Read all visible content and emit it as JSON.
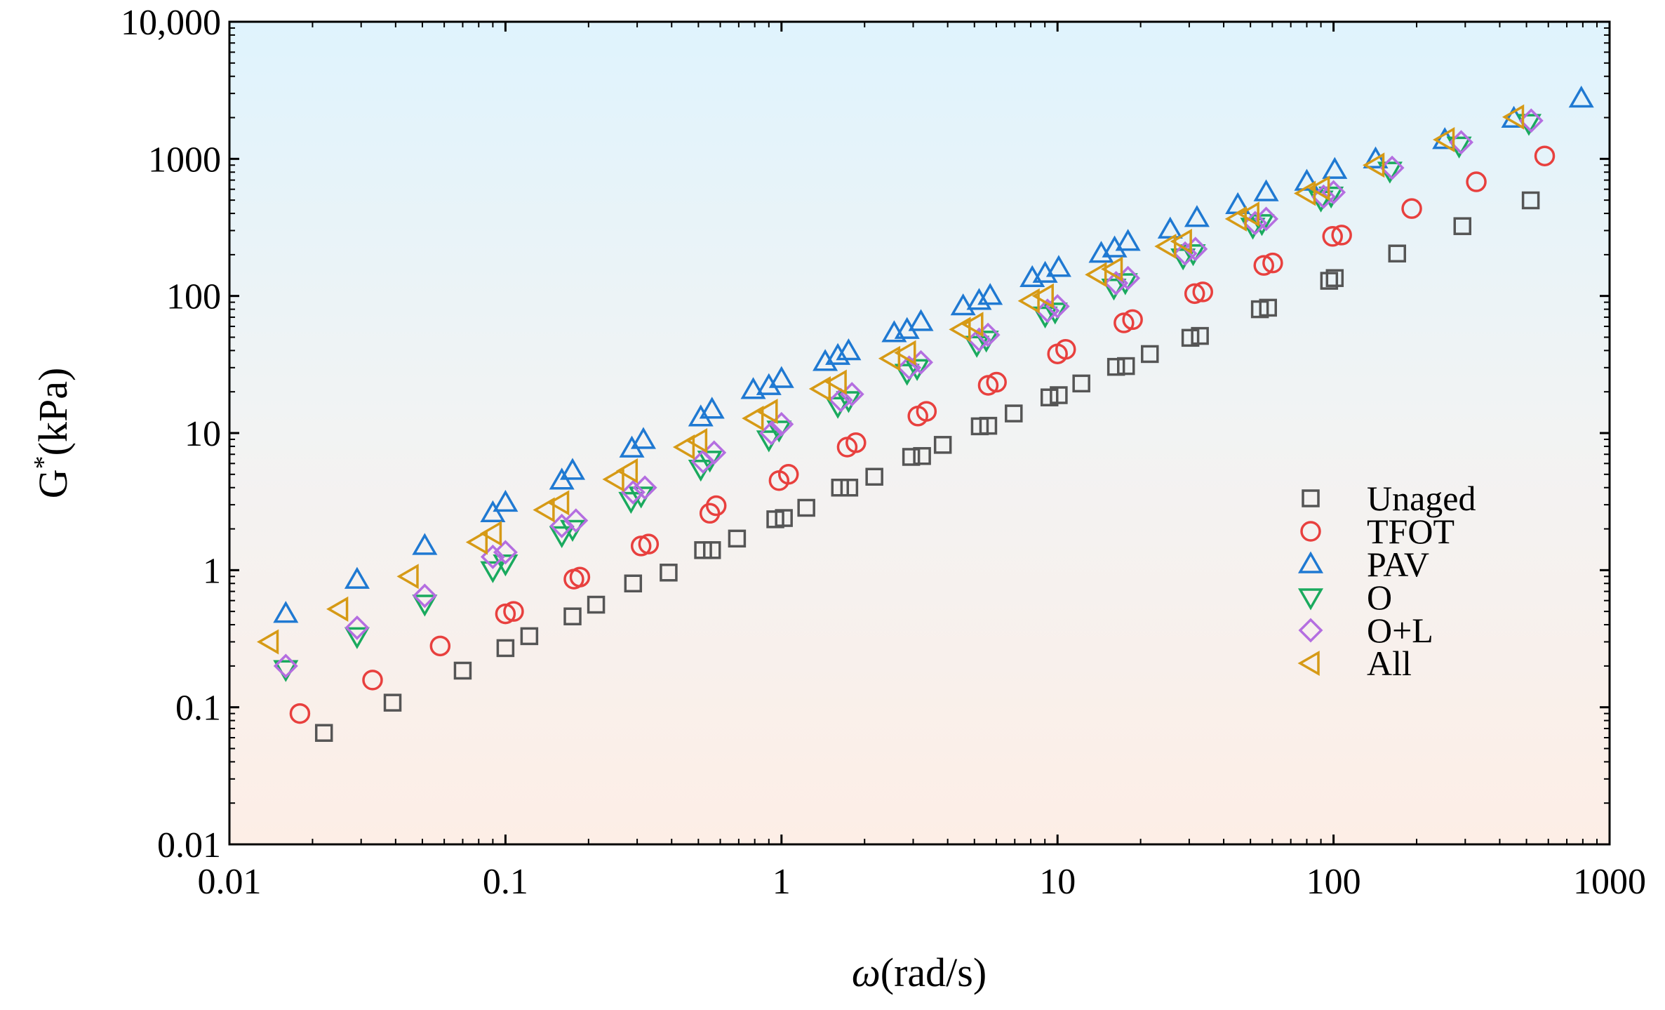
{
  "chart_data": {
    "type": "scatter",
    "xscale": "log",
    "yscale": "log",
    "xlim": [
      0.01,
      1000
    ],
    "ylim": [
      0.01,
      10000
    ],
    "xlabel": "ω(rad/s)",
    "xlabel_symbol": "ω",
    "xlabel_unit": "(rad/s)",
    "ylabel": "G*(kPa)",
    "ylabel_base": "G",
    "ylabel_sup": "*",
    "ylabel_unit": "(kPa)",
    "xticks": [
      {
        "value": 0.01,
        "label": "0.01"
      },
      {
        "value": 0.1,
        "label": "0.1"
      },
      {
        "value": 1,
        "label": "1"
      },
      {
        "value": 10,
        "label": "10"
      },
      {
        "value": 100,
        "label": "100"
      },
      {
        "value": 1000,
        "label": "1000"
      }
    ],
    "yticks": [
      {
        "value": 0.01,
        "label": "0.01"
      },
      {
        "value": 0.1,
        "label": "0.1"
      },
      {
        "value": 1,
        "label": "1"
      },
      {
        "value": 10,
        "label": "10"
      },
      {
        "value": 100,
        "label": "100"
      },
      {
        "value": 1000,
        "label": "1000"
      },
      {
        "value": 10000,
        "label": "10,000"
      }
    ],
    "background_gradient": {
      "top": "#dff3fd",
      "bottom": "#fdeee6"
    },
    "legend_position": "bottom-right",
    "series": [
      {
        "name": "Unaged",
        "marker": "square",
        "color": "#555555",
        "x": [
          0.022,
          0.039,
          0.07,
          0.1,
          0.122,
          0.175,
          0.213,
          0.29,
          0.39,
          0.52,
          0.56,
          0.69,
          0.95,
          1.02,
          1.23,
          1.63,
          1.76,
          2.17,
          2.95,
          3.23,
          3.84,
          5.23,
          5.61,
          6.94,
          9.35,
          10.1,
          12.2,
          16.3,
          17.7,
          21.6,
          30.3,
          32.8,
          54.1,
          57.9,
          96.4,
          101,
          170,
          293,
          518
        ],
        "y": [
          0.065,
          0.108,
          0.185,
          0.27,
          0.33,
          0.46,
          0.56,
          0.8,
          0.96,
          1.4,
          1.4,
          1.7,
          2.35,
          2.4,
          2.85,
          4.0,
          4.0,
          4.8,
          6.7,
          6.8,
          8.2,
          11.2,
          11.3,
          13.9,
          18.2,
          18.9,
          23.0,
          30.4,
          30.8,
          37.7,
          49.5,
          51.1,
          80.0,
          82.1,
          129,
          135,
          204,
          323,
          498
        ]
      },
      {
        "name": "TFOT",
        "marker": "circle",
        "color": "#e8403e",
        "x": [
          0.018,
          0.033,
          0.058,
          0.1,
          0.107,
          0.177,
          0.186,
          0.31,
          0.33,
          0.55,
          0.58,
          0.98,
          1.06,
          1.73,
          1.86,
          3.12,
          3.35,
          5.61,
          6.01,
          10.0,
          10.7,
          17.4,
          18.7,
          31.4,
          33.6,
          55.9,
          60.2,
          99.2,
          107,
          192,
          329,
          582
        ],
        "y": [
          0.09,
          0.158,
          0.28,
          0.48,
          0.5,
          0.86,
          0.89,
          1.5,
          1.55,
          2.6,
          2.95,
          4.5,
          5.0,
          7.9,
          8.5,
          13.3,
          14.4,
          22.3,
          23.5,
          37.8,
          40.8,
          63.6,
          67.2,
          104,
          107,
          167,
          174,
          272,
          278,
          434,
          680,
          1050
        ]
      },
      {
        "name": "PAV",
        "marker": "triangle-up",
        "color": "#1f79d2",
        "x": [
          0.016,
          0.029,
          0.051,
          0.09,
          0.1,
          0.16,
          0.175,
          0.287,
          0.316,
          0.51,
          0.56,
          0.79,
          0.9,
          1.0,
          1.44,
          1.6,
          1.75,
          2.56,
          2.85,
          3.2,
          4.55,
          5.2,
          5.7,
          8.1,
          9.02,
          10.1,
          14.4,
          16.1,
          18.0,
          25.6,
          32.0,
          45.0,
          57.0,
          80.0,
          101,
          142,
          253,
          450,
          790
        ],
        "y": [
          0.48,
          0.85,
          1.5,
          2.6,
          3.1,
          4.5,
          5.3,
          7.7,
          8.9,
          13.0,
          14.8,
          20.6,
          22.0,
          24.8,
          33.0,
          36.5,
          39.5,
          53.5,
          56.5,
          64.5,
          84.0,
          92.0,
          100,
          135,
          145,
          160,
          203,
          222,
          248,
          305,
          370,
          460,
          570,
          680,
          830,
          990,
          1370,
          1960,
          2750
        ]
      },
      {
        "name": "O",
        "marker": "triangle-down",
        "color": "#1aaa5e",
        "x": [
          0.016,
          0.029,
          0.051,
          0.09,
          0.1,
          0.16,
          0.175,
          0.285,
          0.31,
          0.51,
          0.55,
          0.9,
          0.98,
          1.6,
          1.75,
          2.85,
          3.1,
          5.1,
          5.52,
          9.02,
          9.8,
          16.0,
          17.6,
          28.5,
          31.0,
          51.0,
          55.0,
          90.0,
          98.0,
          160,
          285,
          510
        ],
        "y": [
          0.19,
          0.33,
          0.57,
          1.0,
          1.12,
          1.8,
          2.0,
          3.2,
          3.5,
          5.5,
          6.4,
          9.0,
          10.6,
          15.8,
          17.4,
          27.5,
          29.8,
          44.0,
          48.0,
          72.0,
          77.0,
          115,
          126,
          191,
          205,
          320,
          340,
          505,
          540,
          820,
          1250,
          1830
        ]
      },
      {
        "name": "O+L",
        "marker": "diamond",
        "color": "#b46ee0",
        "x": [
          0.016,
          0.029,
          0.051,
          0.09,
          0.1,
          0.16,
          0.18,
          0.29,
          0.32,
          0.52,
          0.57,
          0.92,
          1.0,
          1.64,
          1.8,
          2.9,
          3.2,
          5.2,
          5.6,
          9.2,
          10.0,
          16.3,
          18.0,
          29.0,
          31.6,
          52.0,
          57.0,
          92.0,
          100,
          163,
          290,
          520
        ],
        "y": [
          0.2,
          0.38,
          0.65,
          1.25,
          1.35,
          2.1,
          2.3,
          3.7,
          4.0,
          6.2,
          7.2,
          10.0,
          11.6,
          17.4,
          19.2,
          30.0,
          32.8,
          48.0,
          52.0,
          78.0,
          84.0,
          124,
          135,
          204,
          220,
          340,
          365,
          530,
          570,
          860,
          1320,
          1900
        ]
      },
      {
        "name": "All",
        "marker": "triangle-left",
        "color": "#d69a16",
        "x": [
          0.014,
          0.025,
          0.045,
          0.08,
          0.09,
          0.14,
          0.158,
          0.25,
          0.28,
          0.45,
          0.5,
          0.8,
          0.9,
          1.4,
          1.6,
          2.5,
          2.85,
          4.5,
          5.0,
          8.0,
          9.0,
          14.0,
          16.0,
          25.0,
          28.5,
          45.0,
          50.0,
          80.0,
          90.0,
          142,
          255,
          455
        ],
        "y": [
          0.3,
          0.52,
          0.9,
          1.6,
          1.85,
          2.75,
          3.1,
          4.6,
          5.3,
          7.9,
          8.8,
          12.8,
          14.4,
          21.0,
          23.5,
          35.0,
          38.5,
          57.0,
          62.0,
          92.0,
          100,
          143,
          157,
          230,
          250,
          365,
          395,
          560,
          610,
          900,
          1380,
          2020
        ]
      }
    ]
  }
}
